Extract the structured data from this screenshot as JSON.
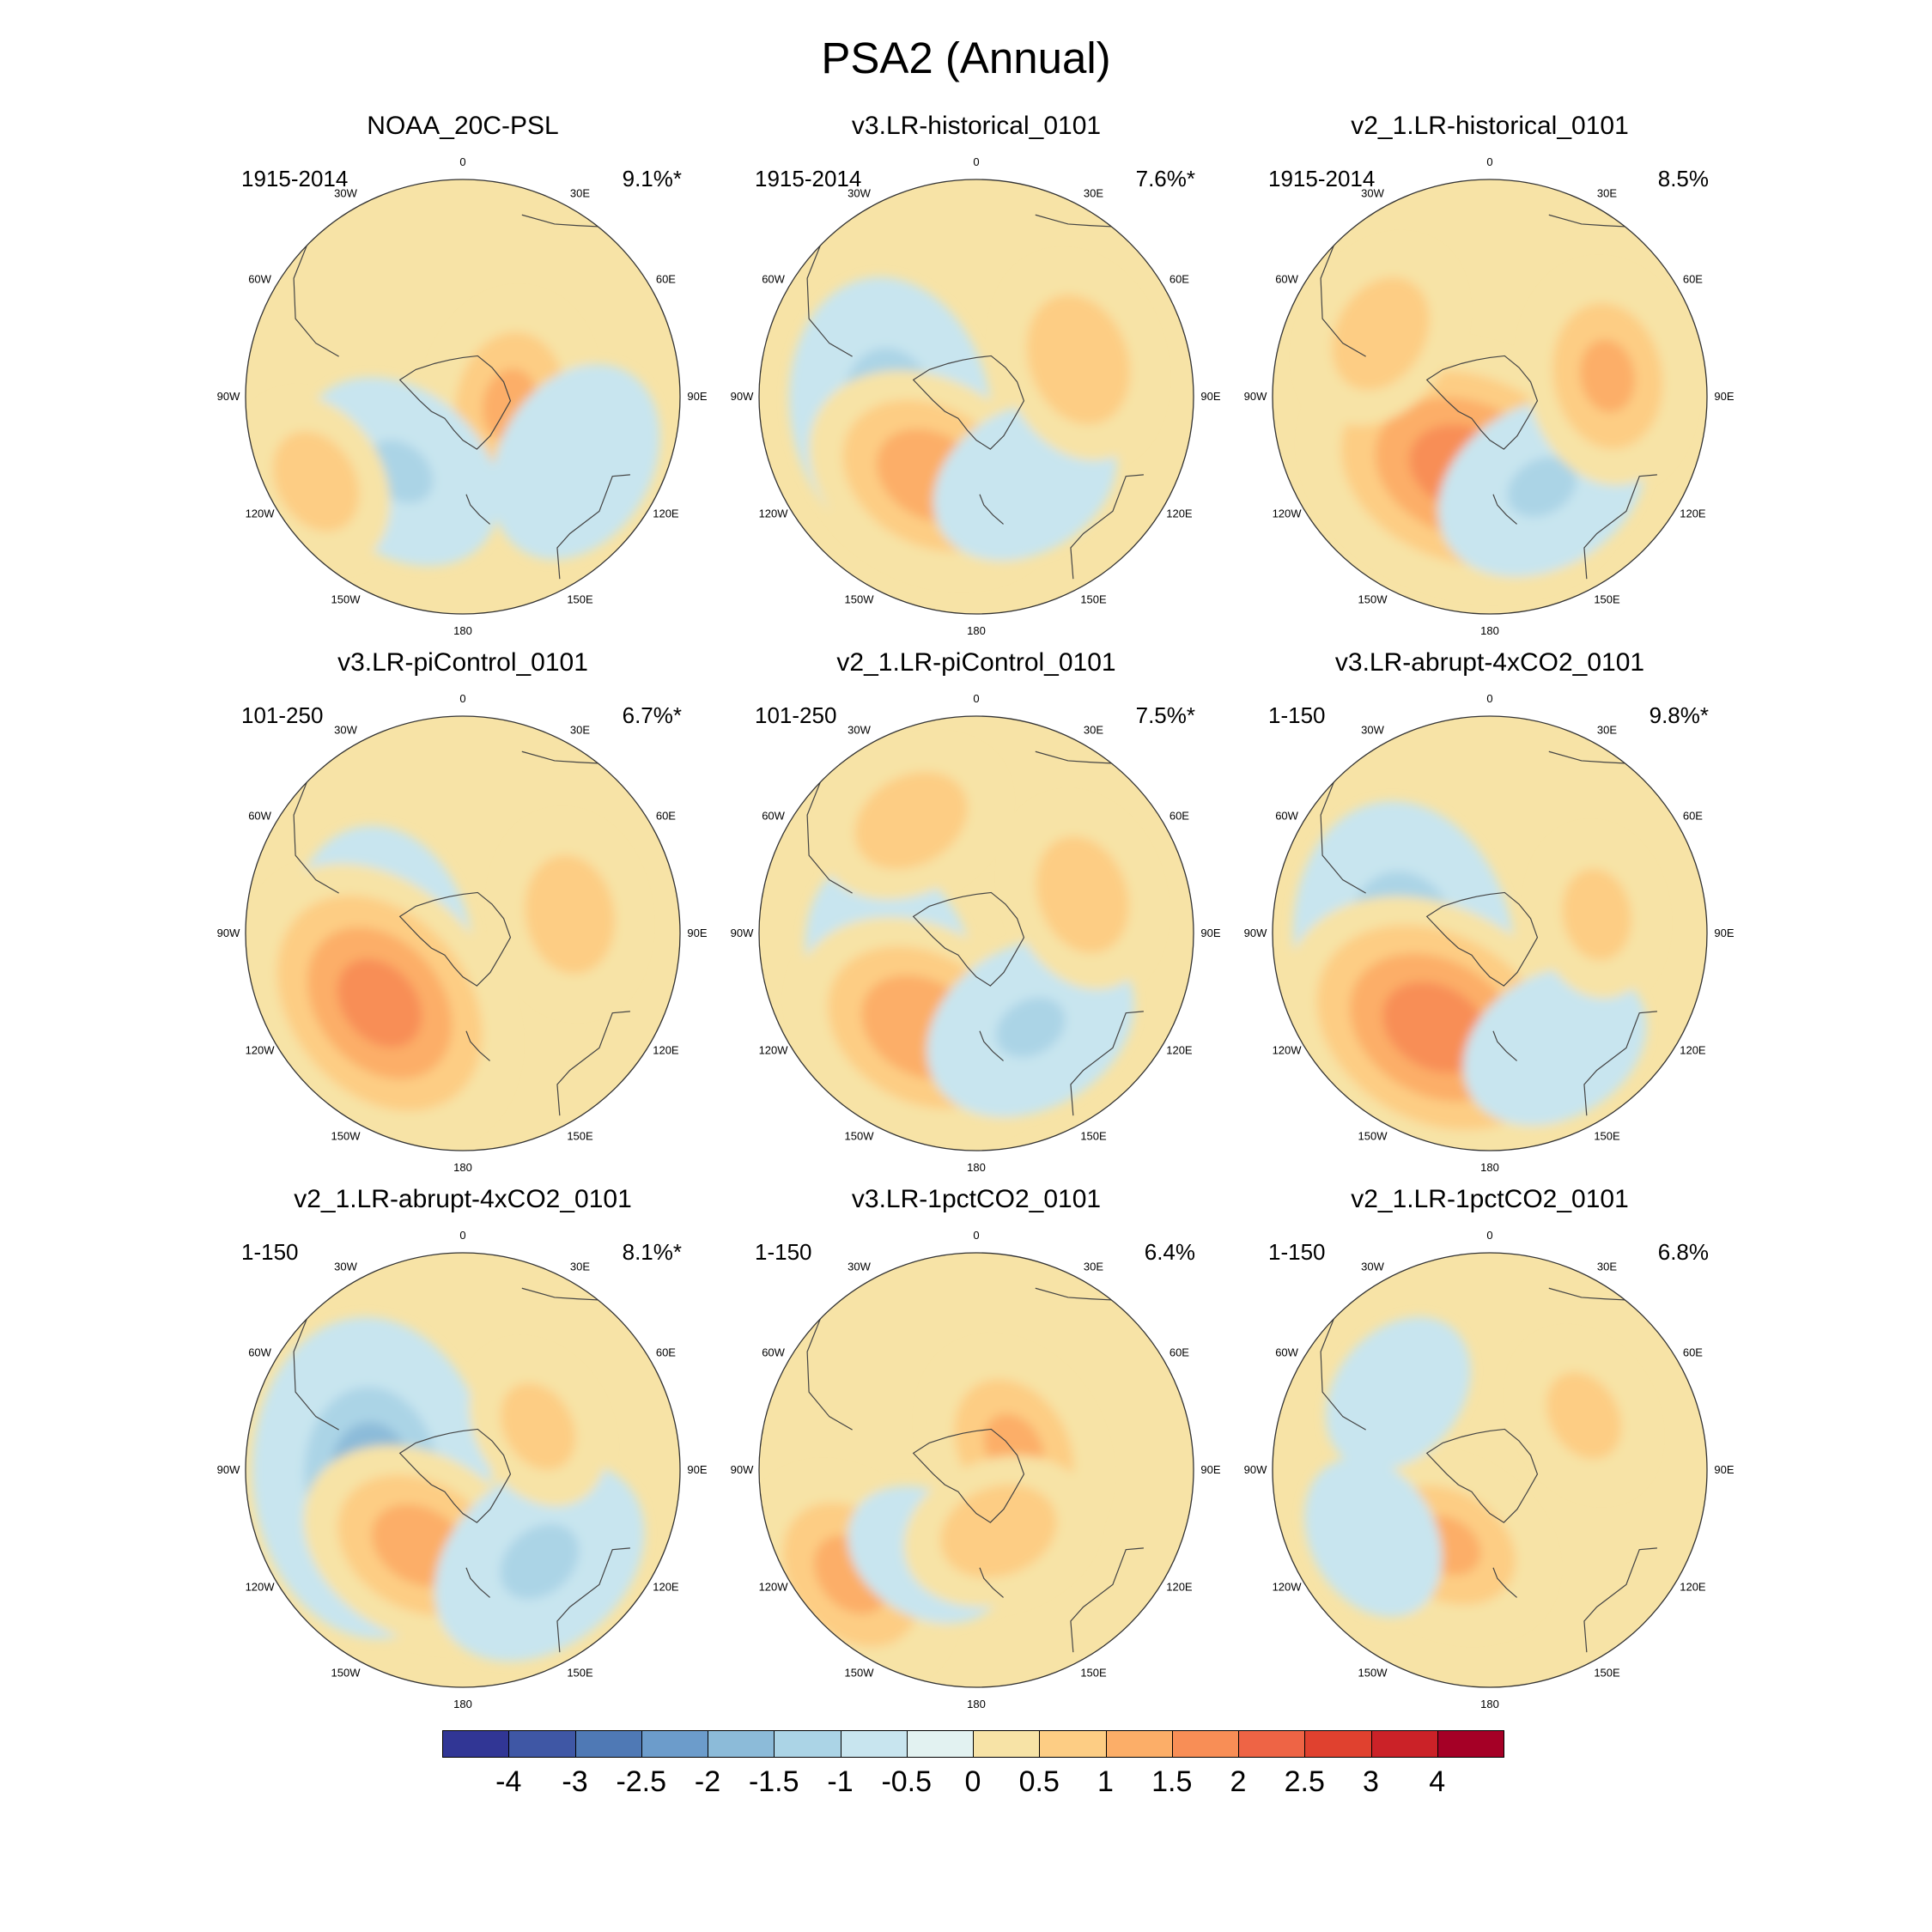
{
  "chart_data": {
    "type": "heatmap",
    "title": "PSA2 (Annual)",
    "projection": "south-polar-stereographic",
    "longitude_labels": [
      "0",
      "30E",
      "60E",
      "90E",
      "120E",
      "150E",
      "180",
      "150W",
      "120W",
      "90W",
      "60W",
      "30W"
    ],
    "panels": [
      {
        "title": "NOAA_20C-PSL",
        "period": "1915-2014",
        "variance": "9.1%*"
      },
      {
        "title": "v3.LR-historical_0101",
        "period": "1915-2014",
        "variance": "7.6%*"
      },
      {
        "title": "v2_1.LR-historical_0101",
        "period": "1915-2014",
        "variance": "8.5%"
      },
      {
        "title": "v3.LR-piControl_0101",
        "period": "101-250",
        "variance": "6.7%*"
      },
      {
        "title": "v2_1.LR-piControl_0101",
        "period": "101-250",
        "variance": "7.5%*"
      },
      {
        "title": "v3.LR-abrupt-4xCO2_0101",
        "period": "1-150",
        "variance": "9.8%*"
      },
      {
        "title": "v2_1.LR-abrupt-4xCO2_0101",
        "period": "1-150",
        "variance": "8.1%*"
      },
      {
        "title": "v3.LR-1pctCO2_0101",
        "period": "1-150",
        "variance": "6.4%"
      },
      {
        "title": "v2_1.LR-1pctCO2_0101",
        "period": "1-150",
        "variance": "6.8%"
      }
    ],
    "colorbar": {
      "labels": [
        "-4",
        "-3",
        "-2.5",
        "-2",
        "-1.5",
        "-1",
        "-0.5",
        "0",
        "0.5",
        "1",
        "1.5",
        "2",
        "2.5",
        "3",
        "4"
      ],
      "colors": [
        "#313695",
        "#3f57a5",
        "#4f79b5",
        "#6c9ccb",
        "#8cbbd9",
        "#abd4e6",
        "#c8e5ef",
        "#e2f2f1",
        "#f7e3a6",
        "#fdcd84",
        "#fcae68",
        "#f88e56",
        "#ee6445",
        "#e0412f",
        "#cb2228",
        "#a50026"
      ]
    },
    "anomaly_centers": [
      [
        {
          "lon": 100,
          "r": 0.22,
          "v": 1.0
        },
        {
          "lon": -140,
          "r": 0.45,
          "v": -1.0
        },
        {
          "lon": 120,
          "r": 0.6,
          "v": -0.9
        },
        {
          "lon": -120,
          "r": 0.78,
          "v": 0.7
        }
      ],
      [
        {
          "lon": -100,
          "r": 0.4,
          "v": -1.4
        },
        {
          "lon": -150,
          "r": 0.42,
          "v": 1.3
        },
        {
          "lon": 150,
          "r": 0.45,
          "v": -0.8
        },
        {
          "lon": 70,
          "r": 0.5,
          "v": 0.9
        }
      ],
      [
        {
          "lon": -160,
          "r": 0.35,
          "v": 1.8
        },
        {
          "lon": 150,
          "r": 0.48,
          "v": -1.0
        },
        {
          "lon": 80,
          "r": 0.55,
          "v": 1.0
        },
        {
          "lon": -60,
          "r": 0.58,
          "v": 0.8
        }
      ],
      [
        {
          "lon": -100,
          "r": 0.38,
          "v": -1.2
        },
        {
          "lon": -130,
          "r": 0.5,
          "v": 1.7
        },
        {
          "lon": 80,
          "r": 0.5,
          "v": 0.8
        }
      ],
      [
        {
          "lon": -110,
          "r": 0.42,
          "v": -1.0
        },
        {
          "lon": -150,
          "r": 0.5,
          "v": 1.4
        },
        {
          "lon": 150,
          "r": 0.5,
          "v": -1.0
        },
        {
          "lon": 70,
          "r": 0.52,
          "v": 0.8
        },
        {
          "lon": -30,
          "r": 0.6,
          "v": 0.8
        }
      ],
      [
        {
          "lon": -100,
          "r": 0.4,
          "v": -1.6
        },
        {
          "lon": -150,
          "r": 0.5,
          "v": 1.8
        },
        {
          "lon": 150,
          "r": 0.6,
          "v": -0.8
        },
        {
          "lon": 80,
          "r": 0.5,
          "v": 0.6
        }
      ],
      [
        {
          "lon": -95,
          "r": 0.42,
          "v": -1.8
        },
        {
          "lon": -150,
          "r": 0.4,
          "v": 1.2
        },
        {
          "lon": 140,
          "r": 0.55,
          "v": -1.1
        },
        {
          "lon": 60,
          "r": 0.4,
          "v": 0.6
        }
      ],
      [
        {
          "lon": 60,
          "r": 0.2,
          "v": 1.0
        },
        {
          "lon": -130,
          "r": 0.75,
          "v": 1.1
        },
        {
          "lon": -150,
          "r": 0.45,
          "v": -0.6
        },
        {
          "lon": 160,
          "r": 0.3,
          "v": 0.8
        }
      ],
      [
        {
          "lon": -150,
          "r": 0.4,
          "v": 1.0
        },
        {
          "lon": -120,
          "r": 0.62,
          "v": -0.6
        },
        {
          "lon": 60,
          "r": 0.5,
          "v": 0.6
        },
        {
          "lon": -50,
          "r": 0.55,
          "v": -0.6
        }
      ]
    ]
  }
}
